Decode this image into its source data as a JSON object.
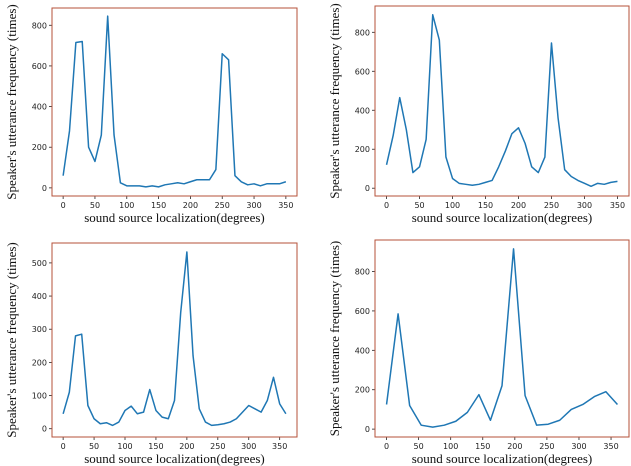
{
  "chart_data": [
    {
      "type": "line",
      "xlabel": "sound source localization(degrees)",
      "ylabel": "Speaker's utterance frequency (times)",
      "color": "#1f77b4",
      "frame_color": "#b5503a",
      "x": [
        0,
        10,
        20,
        30,
        40,
        50,
        60,
        70,
        80,
        90,
        100,
        110,
        120,
        130,
        140,
        150,
        160,
        170,
        180,
        190,
        200,
        210,
        220,
        230,
        240,
        250,
        260,
        270,
        280,
        290,
        300,
        310,
        320,
        330,
        340,
        350
      ],
      "values": [
        60,
        280,
        715,
        720,
        200,
        130,
        260,
        845,
        260,
        25,
        10,
        10,
        10,
        5,
        10,
        5,
        15,
        20,
        25,
        20,
        30,
        40,
        40,
        40,
        90,
        660,
        630,
        60,
        30,
        15,
        20,
        10,
        20,
        20,
        20,
        30
      ],
      "xlim": [
        -17.5,
        367.5
      ],
      "xticks": [
        0,
        50,
        100,
        150,
        200,
        250,
        300,
        350
      ],
      "ylim": [
        -40,
        885
      ],
      "yticks": [
        0,
        200,
        400,
        600,
        800
      ]
    },
    {
      "type": "line",
      "xlabel": "sound source localization(degrees)",
      "ylabel": "Speaker's utterance frequency (times)",
      "color": "#1f77b4",
      "frame_color": "#b5503a",
      "x": [
        0,
        10,
        20,
        30,
        40,
        50,
        60,
        70,
        80,
        90,
        100,
        110,
        120,
        130,
        140,
        150,
        160,
        170,
        180,
        190,
        200,
        210,
        220,
        230,
        240,
        250,
        260,
        270,
        280,
        290,
        300,
        310,
        320,
        330,
        340,
        350
      ],
      "values": [
        120,
        270,
        465,
        300,
        80,
        110,
        250,
        890,
        760,
        160,
        50,
        25,
        20,
        15,
        20,
        30,
        40,
        110,
        190,
        280,
        310,
        230,
        110,
        80,
        160,
        745,
        360,
        95,
        60,
        40,
        25,
        10,
        25,
        20,
        30,
        35
      ],
      "xlim": [
        -17.5,
        367.5
      ],
      "xticks": [
        0,
        50,
        100,
        150,
        200,
        250,
        300,
        350
      ],
      "ylim": [
        -40,
        935
      ],
      "yticks": [
        0,
        200,
        400,
        600,
        800
      ]
    },
    {
      "type": "line",
      "xlabel": "sound source localization(degrees)",
      "ylabel": "Speaker's utterance frequency (times)",
      "color": "#1f77b4",
      "frame_color": "#b5503a",
      "x": [
        0,
        10,
        20,
        30,
        40,
        50,
        60,
        70,
        80,
        90,
        100,
        110,
        120,
        130,
        140,
        150,
        160,
        170,
        180,
        190,
        200,
        210,
        220,
        230,
        240,
        250,
        260,
        270,
        280,
        290,
        300,
        310,
        320,
        330,
        340,
        350,
        360
      ],
      "values": [
        45,
        110,
        280,
        285,
        70,
        30,
        15,
        18,
        10,
        20,
        55,
        68,
        45,
        50,
        118,
        55,
        35,
        30,
        85,
        350,
        533,
        220,
        60,
        20,
        10,
        12,
        15,
        20,
        30,
        50,
        70,
        60,
        50,
        85,
        155,
        75,
        45
      ],
      "xlim": [
        -18,
        378
      ],
      "xticks": [
        0,
        50,
        100,
        150,
        200,
        250,
        300,
        350
      ],
      "ylim": [
        -25,
        560
      ],
      "yticks": [
        0,
        100,
        200,
        300,
        400,
        500
      ]
    },
    {
      "type": "line",
      "xlabel": "sound source localization(degrees)",
      "ylabel": "Speaker's utterance frequency (times)",
      "color": "#1f77b4",
      "frame_color": "#b5503a",
      "x": [
        0,
        18,
        36,
        54,
        72,
        90,
        108,
        126,
        144,
        162,
        180,
        198,
        216,
        234,
        252,
        270,
        288,
        306,
        324,
        342,
        360
      ],
      "values": [
        125,
        585,
        120,
        20,
        10,
        20,
        40,
        85,
        175,
        45,
        220,
        915,
        170,
        20,
        25,
        45,
        100,
        125,
        165,
        190,
        125
      ],
      "xlim": [
        -18,
        378
      ],
      "xticks": [
        0,
        50,
        100,
        150,
        200,
        250,
        300,
        350
      ],
      "ylim": [
        -40,
        960
      ],
      "yticks": [
        0,
        200,
        400,
        600,
        800
      ]
    }
  ]
}
